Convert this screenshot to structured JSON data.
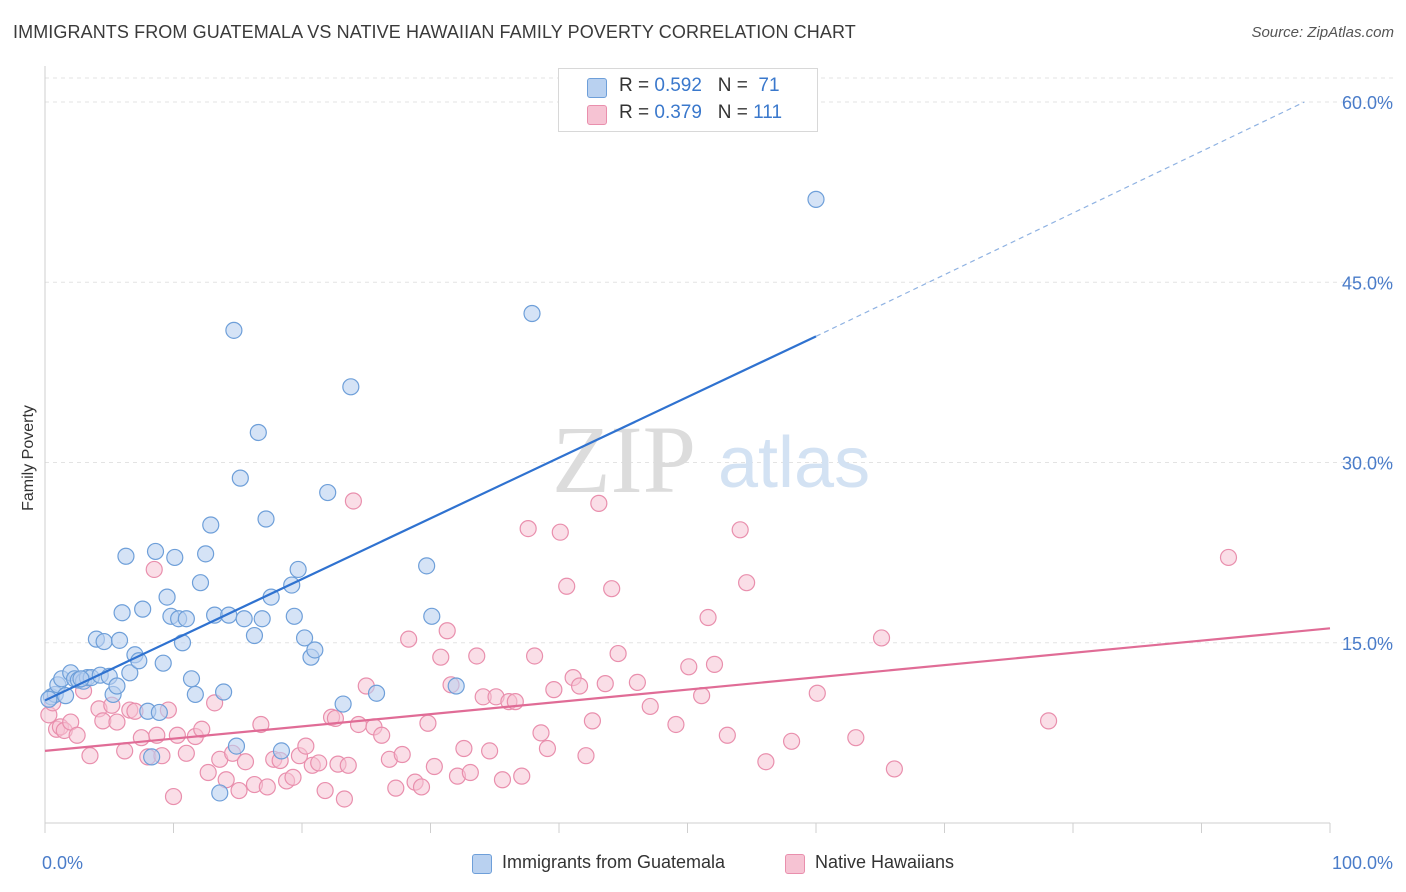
{
  "title": "IMMIGRANTS FROM GUATEMALA VS NATIVE HAWAIIAN FAMILY POVERTY CORRELATION CHART",
  "source": "Source: ZipAtlas.com",
  "watermark": {
    "zip": "ZIP",
    "atlas": "atlas"
  },
  "legend": {
    "series1": {
      "r_label": "R = ",
      "r_value": "0.592",
      "n_label": "N = ",
      "n_value": "71"
    },
    "series2": {
      "r_label": "R = ",
      "r_value": "0.379",
      "n_label": "N = ",
      "n_value": "111"
    }
  },
  "bottom_legend": {
    "series1": "Immigrants from Guatemala",
    "series2": "Native Hawaiians"
  },
  "colors": {
    "blue_fill": "#b9d1f0",
    "blue_stroke": "#6e9fd9",
    "blue_line": "#2f72d0",
    "pink_fill": "#f6c3d3",
    "pink_stroke": "#e98fad",
    "pink_line": "#e06c96",
    "grid": "#e3e3e3",
    "axis": "#cfcfcf",
    "tick_text": "#4a7cc9"
  },
  "chart_data": {
    "type": "scatter",
    "title": "IMMIGRANTS FROM GUATEMALA VS NATIVE HAWAIIAN FAMILY POVERTY CORRELATION CHART",
    "xlabel": "",
    "ylabel": "Family Poverty",
    "xlim": [
      0,
      100
    ],
    "ylim": [
      0,
      62
    ],
    "x_ticks": [
      0,
      100
    ],
    "x_tick_labels": [
      "0.0%",
      "100.0%"
    ],
    "y_ticks": [
      15,
      30,
      45,
      60
    ],
    "y_tick_labels": [
      "15.0%",
      "30.0%",
      "45.0%",
      "60.0%"
    ],
    "grid": true,
    "series": [
      {
        "name": "Immigrants from Guatemala",
        "R": 0.592,
        "N": 71,
        "trend": {
          "x0": 0,
          "y0": 10.2,
          "x1": 60,
          "y1": 40.5,
          "dash_x1": 98,
          "dash_y1": 60
        },
        "points": [
          [
            0.5,
            10.5
          ],
          [
            0.8,
            10.7
          ],
          [
            1.0,
            11.5
          ],
          [
            1.3,
            12.0
          ],
          [
            1.6,
            10.6
          ],
          [
            2.0,
            12.5
          ],
          [
            2.3,
            12.0
          ],
          [
            2.6,
            11.9
          ],
          [
            3.0,
            11.8
          ],
          [
            3.3,
            12.1
          ],
          [
            3.6,
            12.1
          ],
          [
            4.0,
            15.3
          ],
          [
            4.3,
            12.3
          ],
          [
            4.6,
            15.1
          ],
          [
            5.0,
            12.2
          ],
          [
            5.3,
            10.7
          ],
          [
            5.6,
            11.4
          ],
          [
            5.8,
            15.2
          ],
          [
            6.0,
            17.5
          ],
          [
            6.3,
            22.2
          ],
          [
            6.6,
            12.5
          ],
          [
            7.0,
            14.0
          ],
          [
            7.3,
            13.5
          ],
          [
            7.6,
            17.8
          ],
          [
            8.0,
            9.3
          ],
          [
            8.3,
            5.5
          ],
          [
            8.6,
            22.6
          ],
          [
            8.9,
            9.2
          ],
          [
            9.2,
            13.3
          ],
          [
            9.5,
            18.8
          ],
          [
            9.8,
            17.2
          ],
          [
            10.1,
            22.1
          ],
          [
            10.4,
            17.0
          ],
          [
            10.7,
            15.0
          ],
          [
            11.0,
            17.0
          ],
          [
            11.4,
            12.0
          ],
          [
            11.7,
            10.7
          ],
          [
            12.1,
            20.0
          ],
          [
            12.5,
            22.4
          ],
          [
            12.9,
            24.8
          ],
          [
            13.2,
            17.3
          ],
          [
            13.6,
            2.5
          ],
          [
            13.9,
            10.9
          ],
          [
            14.3,
            17.3
          ],
          [
            14.7,
            41.0
          ],
          [
            14.9,
            6.4
          ],
          [
            15.2,
            28.7
          ],
          [
            15.5,
            17.0
          ],
          [
            16.3,
            15.6
          ],
          [
            16.6,
            32.5
          ],
          [
            16.9,
            17.0
          ],
          [
            17.2,
            25.3
          ],
          [
            17.6,
            18.8
          ],
          [
            18.4,
            6.0
          ],
          [
            19.2,
            19.8
          ],
          [
            19.4,
            17.2
          ],
          [
            19.7,
            21.1
          ],
          [
            20.2,
            15.4
          ],
          [
            20.7,
            13.8
          ],
          [
            21.0,
            14.4
          ],
          [
            22.0,
            27.5
          ],
          [
            23.2,
            9.9
          ],
          [
            23.8,
            36.3
          ],
          [
            25.8,
            10.8
          ],
          [
            29.7,
            21.4
          ],
          [
            30.1,
            17.2
          ],
          [
            32.0,
            11.4
          ],
          [
            37.9,
            42.4
          ],
          [
            60.0,
            51.9
          ],
          [
            0.3,
            10.3
          ],
          [
            2.8,
            12.0
          ]
        ]
      },
      {
        "name": "Native Hawaiians",
        "R": 0.379,
        "N": 111,
        "trend": {
          "x0": 0,
          "y0": 6.0,
          "x1": 100,
          "y1": 16.2
        },
        "points": [
          [
            0.3,
            9.0
          ],
          [
            0.6,
            10.0
          ],
          [
            0.9,
            7.8
          ],
          [
            1.2,
            8.0
          ],
          [
            1.5,
            7.7
          ],
          [
            2.0,
            8.4
          ],
          [
            2.5,
            7.3
          ],
          [
            3.0,
            11.0
          ],
          [
            3.5,
            5.6
          ],
          [
            4.2,
            9.5
          ],
          [
            4.5,
            8.5
          ],
          [
            5.2,
            9.8
          ],
          [
            5.6,
            8.4
          ],
          [
            6.2,
            6.0
          ],
          [
            6.6,
            9.4
          ],
          [
            7.0,
            9.3
          ],
          [
            7.5,
            7.1
          ],
          [
            8.0,
            5.5
          ],
          [
            8.5,
            21.1
          ],
          [
            8.7,
            7.3
          ],
          [
            9.1,
            5.6
          ],
          [
            9.6,
            9.4
          ],
          [
            10.0,
            2.2
          ],
          [
            10.3,
            7.3
          ],
          [
            11.0,
            5.8
          ],
          [
            11.7,
            7.2
          ],
          [
            12.2,
            7.8
          ],
          [
            12.7,
            4.2
          ],
          [
            13.2,
            10.0
          ],
          [
            13.6,
            5.3
          ],
          [
            14.1,
            3.6
          ],
          [
            14.6,
            5.8
          ],
          [
            15.1,
            2.7
          ],
          [
            15.6,
            5.1
          ],
          [
            16.3,
            3.2
          ],
          [
            16.8,
            8.2
          ],
          [
            17.3,
            3.0
          ],
          [
            17.8,
            5.3
          ],
          [
            18.3,
            5.2
          ],
          [
            18.8,
            3.5
          ],
          [
            19.3,
            3.8
          ],
          [
            19.8,
            5.6
          ],
          [
            20.3,
            6.4
          ],
          [
            20.8,
            4.8
          ],
          [
            21.3,
            5.0
          ],
          [
            21.8,
            2.7
          ],
          [
            22.3,
            8.8
          ],
          [
            22.8,
            4.9
          ],
          [
            23.3,
            2.0
          ],
          [
            23.6,
            4.8
          ],
          [
            24.0,
            26.8
          ],
          [
            24.4,
            8.2
          ],
          [
            25.0,
            11.4
          ],
          [
            25.6,
            8.0
          ],
          [
            26.2,
            7.3
          ],
          [
            26.8,
            5.3
          ],
          [
            27.3,
            2.9
          ],
          [
            27.8,
            5.7
          ],
          [
            28.3,
            15.3
          ],
          [
            28.8,
            3.4
          ],
          [
            29.3,
            3.0
          ],
          [
            29.8,
            8.3
          ],
          [
            30.3,
            4.7
          ],
          [
            30.8,
            13.8
          ],
          [
            31.3,
            16.0
          ],
          [
            31.6,
            11.5
          ],
          [
            32.1,
            3.9
          ],
          [
            32.6,
            6.2
          ],
          [
            33.1,
            4.2
          ],
          [
            33.6,
            13.9
          ],
          [
            34.1,
            10.5
          ],
          [
            34.6,
            6.0
          ],
          [
            35.1,
            10.5
          ],
          [
            35.6,
            3.6
          ],
          [
            36.1,
            10.1
          ],
          [
            36.6,
            10.1
          ],
          [
            37.1,
            3.9
          ],
          [
            37.6,
            24.5
          ],
          [
            38.1,
            13.9
          ],
          [
            38.6,
            7.5
          ],
          [
            39.1,
            6.2
          ],
          [
            39.6,
            11.1
          ],
          [
            40.1,
            24.2
          ],
          [
            40.6,
            19.7
          ],
          [
            41.1,
            12.1
          ],
          [
            41.6,
            11.4
          ],
          [
            42.1,
            5.6
          ],
          [
            42.6,
            8.5
          ],
          [
            43.1,
            26.6
          ],
          [
            43.6,
            11.6
          ],
          [
            44.1,
            19.5
          ],
          [
            44.6,
            14.1
          ],
          [
            46.1,
            11.7
          ],
          [
            47.1,
            9.7
          ],
          [
            49.1,
            8.2
          ],
          [
            50.1,
            13.0
          ],
          [
            51.1,
            10.6
          ],
          [
            51.6,
            17.1
          ],
          [
            52.1,
            13.2
          ],
          [
            53.1,
            7.3
          ],
          [
            54.1,
            24.4
          ],
          [
            54.6,
            20.0
          ],
          [
            56.1,
            5.1
          ],
          [
            58.1,
            6.8
          ],
          [
            60.1,
            10.8
          ],
          [
            63.1,
            7.1
          ],
          [
            65.1,
            15.4
          ],
          [
            66.1,
            4.5
          ],
          [
            78.1,
            8.5
          ],
          [
            92.1,
            22.1
          ],
          [
            22.6,
            8.7
          ]
        ]
      }
    ]
  }
}
